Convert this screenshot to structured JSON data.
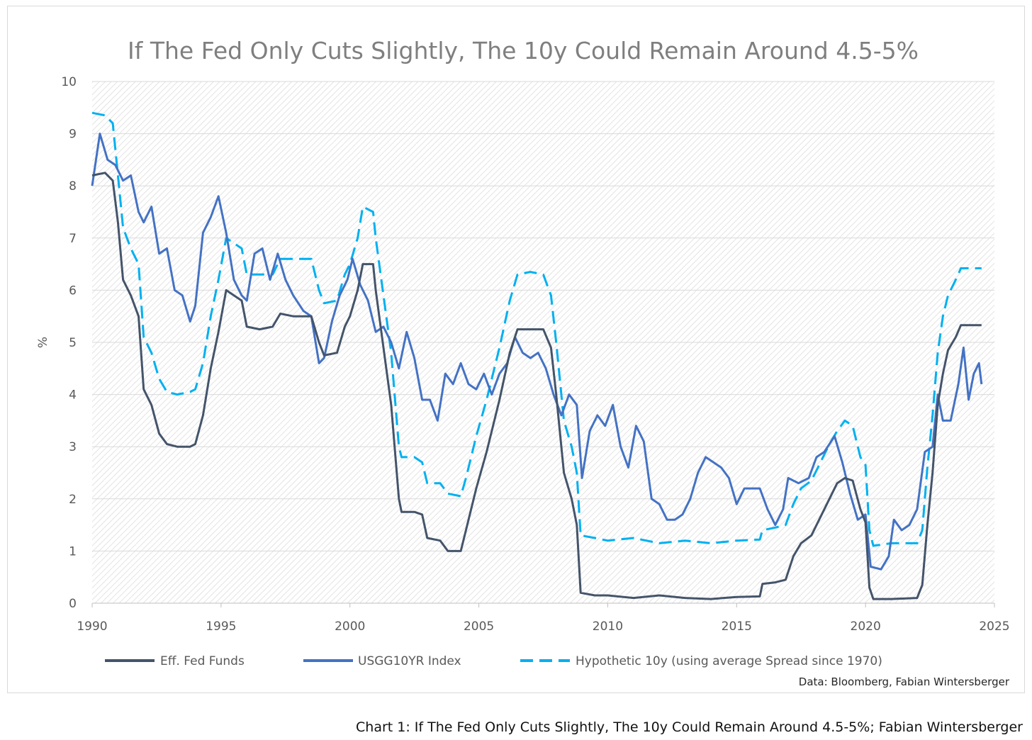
{
  "chart_data": {
    "type": "line",
    "title": "If The Fed Only Cuts Slightly, The 10y Could Remain Around 4.5-5%",
    "ylabel": "%",
    "xlabel": "",
    "xlim": [
      1990,
      2025
    ],
    "ylim": [
      0,
      10
    ],
    "x_ticks": [
      "1990",
      "1995",
      "2000",
      "2005",
      "2010",
      "2015",
      "2020",
      "2025"
    ],
    "y_ticks": [
      "0",
      "1",
      "2",
      "3",
      "4",
      "5",
      "6",
      "7",
      "8",
      "9",
      "10"
    ],
    "grid": true,
    "legend_position": "bottom",
    "series": [
      {
        "name": "Eff. Fed Funds",
        "color": "#44546a",
        "style": "solid",
        "points": [
          [
            1990.0,
            8.2
          ],
          [
            1990.5,
            8.25
          ],
          [
            1990.8,
            8.1
          ],
          [
            1991.0,
            7.3
          ],
          [
            1991.2,
            6.2
          ],
          [
            1991.5,
            5.9
          ],
          [
            1991.8,
            5.5
          ],
          [
            1992.0,
            4.1
          ],
          [
            1992.3,
            3.8
          ],
          [
            1992.6,
            3.25
          ],
          [
            1992.9,
            3.05
          ],
          [
            1993.3,
            3.0
          ],
          [
            1993.8,
            3.0
          ],
          [
            1994.0,
            3.05
          ],
          [
            1994.3,
            3.6
          ],
          [
            1994.6,
            4.5
          ],
          [
            1994.9,
            5.2
          ],
          [
            1995.2,
            6.0
          ],
          [
            1995.5,
            5.9
          ],
          [
            1995.8,
            5.8
          ],
          [
            1996.0,
            5.3
          ],
          [
            1996.5,
            5.25
          ],
          [
            1997.0,
            5.3
          ],
          [
            1997.3,
            5.55
          ],
          [
            1997.8,
            5.5
          ],
          [
            1998.5,
            5.5
          ],
          [
            1998.8,
            5.0
          ],
          [
            1999.0,
            4.75
          ],
          [
            1999.5,
            4.8
          ],
          [
            1999.8,
            5.3
          ],
          [
            2000.0,
            5.5
          ],
          [
            2000.3,
            6.0
          ],
          [
            2000.5,
            6.5
          ],
          [
            2000.9,
            6.5
          ],
          [
            2001.0,
            6.0
          ],
          [
            2001.3,
            4.9
          ],
          [
            2001.6,
            3.8
          ],
          [
            2001.9,
            2.0
          ],
          [
            2002.0,
            1.75
          ],
          [
            2002.5,
            1.75
          ],
          [
            2002.8,
            1.7
          ],
          [
            2003.0,
            1.25
          ],
          [
            2003.5,
            1.2
          ],
          [
            2003.8,
            1.0
          ],
          [
            2004.3,
            1.0
          ],
          [
            2004.5,
            1.4
          ],
          [
            2004.9,
            2.2
          ],
          [
            2005.3,
            2.9
          ],
          [
            2005.8,
            3.9
          ],
          [
            2006.2,
            4.8
          ],
          [
            2006.5,
            5.25
          ],
          [
            2007.0,
            5.25
          ],
          [
            2007.5,
            5.25
          ],
          [
            2007.8,
            4.9
          ],
          [
            2008.0,
            4.0
          ],
          [
            2008.3,
            2.5
          ],
          [
            2008.6,
            2.0
          ],
          [
            2008.8,
            1.5
          ],
          [
            2008.95,
            0.2
          ],
          [
            2009.5,
            0.15
          ],
          [
            2010.0,
            0.15
          ],
          [
            2011.0,
            0.1
          ],
          [
            2012.0,
            0.15
          ],
          [
            2013.0,
            0.1
          ],
          [
            2014.0,
            0.08
          ],
          [
            2015.0,
            0.12
          ],
          [
            2015.9,
            0.13
          ],
          [
            2016.0,
            0.37
          ],
          [
            2016.5,
            0.4
          ],
          [
            2016.9,
            0.45
          ],
          [
            2017.2,
            0.9
          ],
          [
            2017.5,
            1.15
          ],
          [
            2017.9,
            1.3
          ],
          [
            2018.2,
            1.6
          ],
          [
            2018.6,
            2.0
          ],
          [
            2018.9,
            2.3
          ],
          [
            2019.2,
            2.4
          ],
          [
            2019.5,
            2.35
          ],
          [
            2019.8,
            1.8
          ],
          [
            2020.0,
            1.55
          ],
          [
            2020.15,
            0.3
          ],
          [
            2020.3,
            0.08
          ],
          [
            2021.0,
            0.08
          ],
          [
            2022.0,
            0.1
          ],
          [
            2022.2,
            0.35
          ],
          [
            2022.4,
            1.5
          ],
          [
            2022.6,
            2.5
          ],
          [
            2022.8,
            3.8
          ],
          [
            2023.0,
            4.4
          ],
          [
            2023.2,
            4.85
          ],
          [
            2023.5,
            5.1
          ],
          [
            2023.7,
            5.33
          ],
          [
            2024.5,
            5.33
          ]
        ]
      },
      {
        "name": "USGG10YR Index",
        "color": "#4472c4",
        "style": "solid",
        "points": [
          [
            1990.0,
            8.0
          ],
          [
            1990.3,
            9.0
          ],
          [
            1990.6,
            8.5
          ],
          [
            1990.9,
            8.4
          ],
          [
            1991.2,
            8.1
          ],
          [
            1991.5,
            8.2
          ],
          [
            1991.8,
            7.5
          ],
          [
            1992.0,
            7.3
          ],
          [
            1992.3,
            7.6
          ],
          [
            1992.6,
            6.7
          ],
          [
            1992.9,
            6.8
          ],
          [
            1993.2,
            6.0
          ],
          [
            1993.5,
            5.9
          ],
          [
            1993.8,
            5.4
          ],
          [
            1994.0,
            5.7
          ],
          [
            1994.3,
            7.1
          ],
          [
            1994.6,
            7.4
          ],
          [
            1994.9,
            7.8
          ],
          [
            1995.2,
            7.1
          ],
          [
            1995.5,
            6.2
          ],
          [
            1995.8,
            5.9
          ],
          [
            1996.0,
            5.8
          ],
          [
            1996.3,
            6.7
          ],
          [
            1996.6,
            6.8
          ],
          [
            1996.9,
            6.2
          ],
          [
            1997.2,
            6.7
          ],
          [
            1997.5,
            6.2
          ],
          [
            1997.8,
            5.9
          ],
          [
            1998.2,
            5.6
          ],
          [
            1998.5,
            5.5
          ],
          [
            1998.8,
            4.6
          ],
          [
            1999.0,
            4.7
          ],
          [
            1999.3,
            5.4
          ],
          [
            1999.6,
            5.9
          ],
          [
            1999.9,
            6.2
          ],
          [
            2000.1,
            6.6
          ],
          [
            2000.4,
            6.1
          ],
          [
            2000.7,
            5.8
          ],
          [
            2001.0,
            5.2
          ],
          [
            2001.3,
            5.3
          ],
          [
            2001.6,
            5.0
          ],
          [
            2001.9,
            4.5
          ],
          [
            2002.2,
            5.2
          ],
          [
            2002.5,
            4.7
          ],
          [
            2002.8,
            3.9
          ],
          [
            2003.1,
            3.9
          ],
          [
            2003.4,
            3.5
          ],
          [
            2003.7,
            4.4
          ],
          [
            2004.0,
            4.2
          ],
          [
            2004.3,
            4.6
          ],
          [
            2004.6,
            4.2
          ],
          [
            2004.9,
            4.1
          ],
          [
            2005.2,
            4.4
          ],
          [
            2005.5,
            4.0
          ],
          [
            2005.8,
            4.4
          ],
          [
            2006.1,
            4.6
          ],
          [
            2006.4,
            5.1
          ],
          [
            2006.7,
            4.8
          ],
          [
            2007.0,
            4.7
          ],
          [
            2007.3,
            4.8
          ],
          [
            2007.6,
            4.5
          ],
          [
            2007.9,
            4.0
          ],
          [
            2008.2,
            3.6
          ],
          [
            2008.5,
            4.0
          ],
          [
            2008.8,
            3.8
          ],
          [
            2009.0,
            2.4
          ],
          [
            2009.3,
            3.3
          ],
          [
            2009.6,
            3.6
          ],
          [
            2009.9,
            3.4
          ],
          [
            2010.2,
            3.8
          ],
          [
            2010.5,
            3.0
          ],
          [
            2010.8,
            2.6
          ],
          [
            2011.1,
            3.4
          ],
          [
            2011.4,
            3.1
          ],
          [
            2011.7,
            2.0
          ],
          [
            2012.0,
            1.9
          ],
          [
            2012.3,
            1.6
          ],
          [
            2012.6,
            1.6
          ],
          [
            2012.9,
            1.7
          ],
          [
            2013.2,
            2.0
          ],
          [
            2013.5,
            2.5
          ],
          [
            2013.8,
            2.8
          ],
          [
            2014.1,
            2.7
          ],
          [
            2014.4,
            2.6
          ],
          [
            2014.7,
            2.4
          ],
          [
            2015.0,
            1.9
          ],
          [
            2015.3,
            2.2
          ],
          [
            2015.6,
            2.2
          ],
          [
            2015.9,
            2.2
          ],
          [
            2016.2,
            1.8
          ],
          [
            2016.5,
            1.5
          ],
          [
            2016.8,
            1.8
          ],
          [
            2017.0,
            2.4
          ],
          [
            2017.4,
            2.3
          ],
          [
            2017.8,
            2.4
          ],
          [
            2018.1,
            2.8
          ],
          [
            2018.4,
            2.9
          ],
          [
            2018.8,
            3.2
          ],
          [
            2019.1,
            2.7
          ],
          [
            2019.4,
            2.1
          ],
          [
            2019.7,
            1.6
          ],
          [
            2020.0,
            1.7
          ],
          [
            2020.2,
            0.7
          ],
          [
            2020.6,
            0.65
          ],
          [
            2020.9,
            0.9
          ],
          [
            2021.1,
            1.6
          ],
          [
            2021.4,
            1.4
          ],
          [
            2021.7,
            1.5
          ],
          [
            2022.0,
            1.8
          ],
          [
            2022.3,
            2.9
          ],
          [
            2022.6,
            3.0
          ],
          [
            2022.8,
            4.0
          ],
          [
            2023.0,
            3.5
          ],
          [
            2023.3,
            3.5
          ],
          [
            2023.6,
            4.2
          ],
          [
            2023.8,
            4.9
          ],
          [
            2024.0,
            3.9
          ],
          [
            2024.2,
            4.4
          ],
          [
            2024.4,
            4.6
          ],
          [
            2024.5,
            4.2
          ]
        ]
      },
      {
        "name": "Hypothetic 10y (using average Spread since 1970)",
        "color": "#00b0f0",
        "style": "dashed",
        "points": [
          [
            1990.0,
            9.4
          ],
          [
            1990.5,
            9.35
          ],
          [
            1990.8,
            9.2
          ],
          [
            1991.0,
            8.2
          ],
          [
            1991.2,
            7.2
          ],
          [
            1991.5,
            6.8
          ],
          [
            1991.8,
            6.5
          ],
          [
            1992.0,
            5.1
          ],
          [
            1992.3,
            4.8
          ],
          [
            1992.6,
            4.3
          ],
          [
            1992.9,
            4.05
          ],
          [
            1993.3,
            4.0
          ],
          [
            1993.8,
            4.05
          ],
          [
            1994.0,
            4.1
          ],
          [
            1994.3,
            4.6
          ],
          [
            1994.6,
            5.5
          ],
          [
            1994.9,
            6.2
          ],
          [
            1995.2,
            7.0
          ],
          [
            1995.5,
            6.9
          ],
          [
            1995.8,
            6.8
          ],
          [
            1996.0,
            6.3
          ],
          [
            1996.5,
            6.3
          ],
          [
            1997.0,
            6.3
          ],
          [
            1997.3,
            6.6
          ],
          [
            1997.8,
            6.6
          ],
          [
            1998.5,
            6.6
          ],
          [
            1998.8,
            6.0
          ],
          [
            1999.0,
            5.75
          ],
          [
            1999.5,
            5.8
          ],
          [
            1999.8,
            6.3
          ],
          [
            2000.0,
            6.5
          ],
          [
            2000.3,
            7.0
          ],
          [
            2000.5,
            7.6
          ],
          [
            2000.9,
            7.5
          ],
          [
            2001.0,
            7.0
          ],
          [
            2001.3,
            5.9
          ],
          [
            2001.6,
            4.8
          ],
          [
            2001.9,
            3.0
          ],
          [
            2002.0,
            2.8
          ],
          [
            2002.5,
            2.8
          ],
          [
            2002.8,
            2.7
          ],
          [
            2003.0,
            2.3
          ],
          [
            2003.5,
            2.3
          ],
          [
            2003.8,
            2.1
          ],
          [
            2004.3,
            2.05
          ],
          [
            2004.5,
            2.4
          ],
          [
            2004.9,
            3.2
          ],
          [
            2005.3,
            3.9
          ],
          [
            2005.8,
            4.9
          ],
          [
            2006.2,
            5.8
          ],
          [
            2006.5,
            6.3
          ],
          [
            2007.0,
            6.35
          ],
          [
            2007.5,
            6.3
          ],
          [
            2007.8,
            5.9
          ],
          [
            2008.0,
            5.0
          ],
          [
            2008.3,
            3.5
          ],
          [
            2008.6,
            3.0
          ],
          [
            2008.8,
            2.5
          ],
          [
            2008.95,
            1.3
          ],
          [
            2009.5,
            1.25
          ],
          [
            2010.0,
            1.2
          ],
          [
            2011.0,
            1.25
          ],
          [
            2012.0,
            1.15
          ],
          [
            2013.0,
            1.2
          ],
          [
            2014.0,
            1.15
          ],
          [
            2015.0,
            1.2
          ],
          [
            2015.9,
            1.22
          ],
          [
            2016.0,
            1.4
          ],
          [
            2016.5,
            1.45
          ],
          [
            2016.9,
            1.5
          ],
          [
            2017.2,
            1.9
          ],
          [
            2017.5,
            2.2
          ],
          [
            2017.9,
            2.35
          ],
          [
            2018.2,
            2.65
          ],
          [
            2018.6,
            3.05
          ],
          [
            2018.9,
            3.3
          ],
          [
            2019.2,
            3.5
          ],
          [
            2019.5,
            3.4
          ],
          [
            2019.8,
            2.8
          ],
          [
            2020.0,
            2.65
          ],
          [
            2020.15,
            1.4
          ],
          [
            2020.3,
            1.1
          ],
          [
            2021.0,
            1.15
          ],
          [
            2022.0,
            1.15
          ],
          [
            2022.2,
            1.4
          ],
          [
            2022.4,
            2.6
          ],
          [
            2022.6,
            3.6
          ],
          [
            2022.8,
            4.8
          ],
          [
            2023.0,
            5.5
          ],
          [
            2023.2,
            5.9
          ],
          [
            2023.5,
            6.2
          ],
          [
            2023.7,
            6.42
          ],
          [
            2024.5,
            6.42
          ]
        ]
      }
    ]
  },
  "source_text": "Data: Bloomberg, Fabian Wintersberger",
  "caption": "Chart 1: If The Fed Only Cuts Slightly, The 10y Could Remain Around 4.5-5%; Fabian Wintersberger"
}
